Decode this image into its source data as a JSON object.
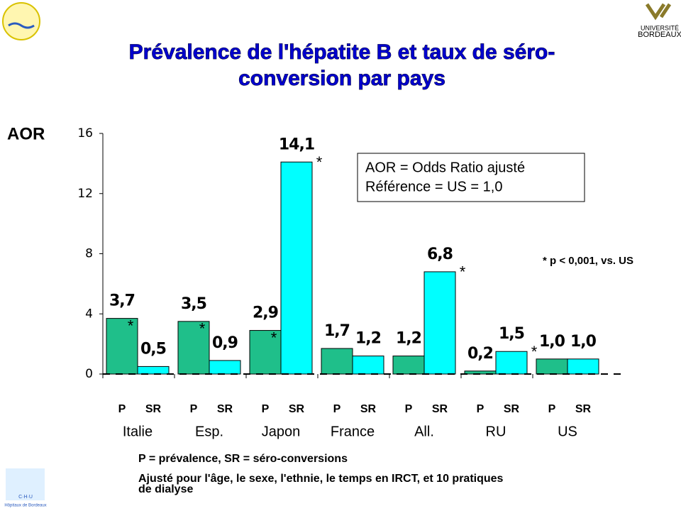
{
  "chart_data": {
    "type": "bar",
    "title_lines": [
      "Prévalence de l'hépatite B et taux de séro-",
      "conversion par pays"
    ],
    "y_label": "AOR",
    "categories": [
      "Italie",
      "Esp.",
      "Japon",
      "France",
      "All.",
      "RU",
      "US"
    ],
    "series": [
      {
        "name": "P",
        "color": "#1fbf8a",
        "values": [
          3.7,
          3.5,
          2.9,
          1.7,
          1.2,
          0.2,
          1.0
        ],
        "value_labels": [
          "3,7",
          "3,5",
          "2,9",
          "1,7",
          "1,2",
          "0,2",
          "1,0"
        ],
        "significance": [
          "*",
          "*",
          "*",
          null,
          null,
          null,
          null
        ]
      },
      {
        "name": "SR",
        "color": "#00ffff",
        "values": [
          0.5,
          0.9,
          14.1,
          1.2,
          6.8,
          1.5,
          1.0
        ],
        "value_labels": [
          "0,5",
          "0,9",
          "14,1",
          "1,2",
          "6,8",
          "1,5",
          "1,0"
        ],
        "significance": [
          null,
          null,
          "*",
          null,
          "*",
          "*",
          null
        ]
      }
    ],
    "ylim": [
      0,
      16
    ],
    "yticks": [
      0,
      4,
      8,
      12,
      16
    ],
    "box_note": [
      "AOR = Odds Ratio ajusté",
      "Référence = US = 1,0"
    ],
    "p_note": "* p < 0,001, vs. US",
    "footnotes": [
      "P = prévalence, SR = séro-conversions",
      "Ajusté pour l'âge, le sexe, l'ethnie, le temps en IRCT, et 10 pratiques",
      "de dialyse"
    ]
  },
  "logos": {
    "right": [
      "UNIVERSITÉ",
      "BORDEAUX"
    ],
    "left_bottom": [
      "C·H·U",
      "Hôpitaux de Bordeaux"
    ]
  }
}
